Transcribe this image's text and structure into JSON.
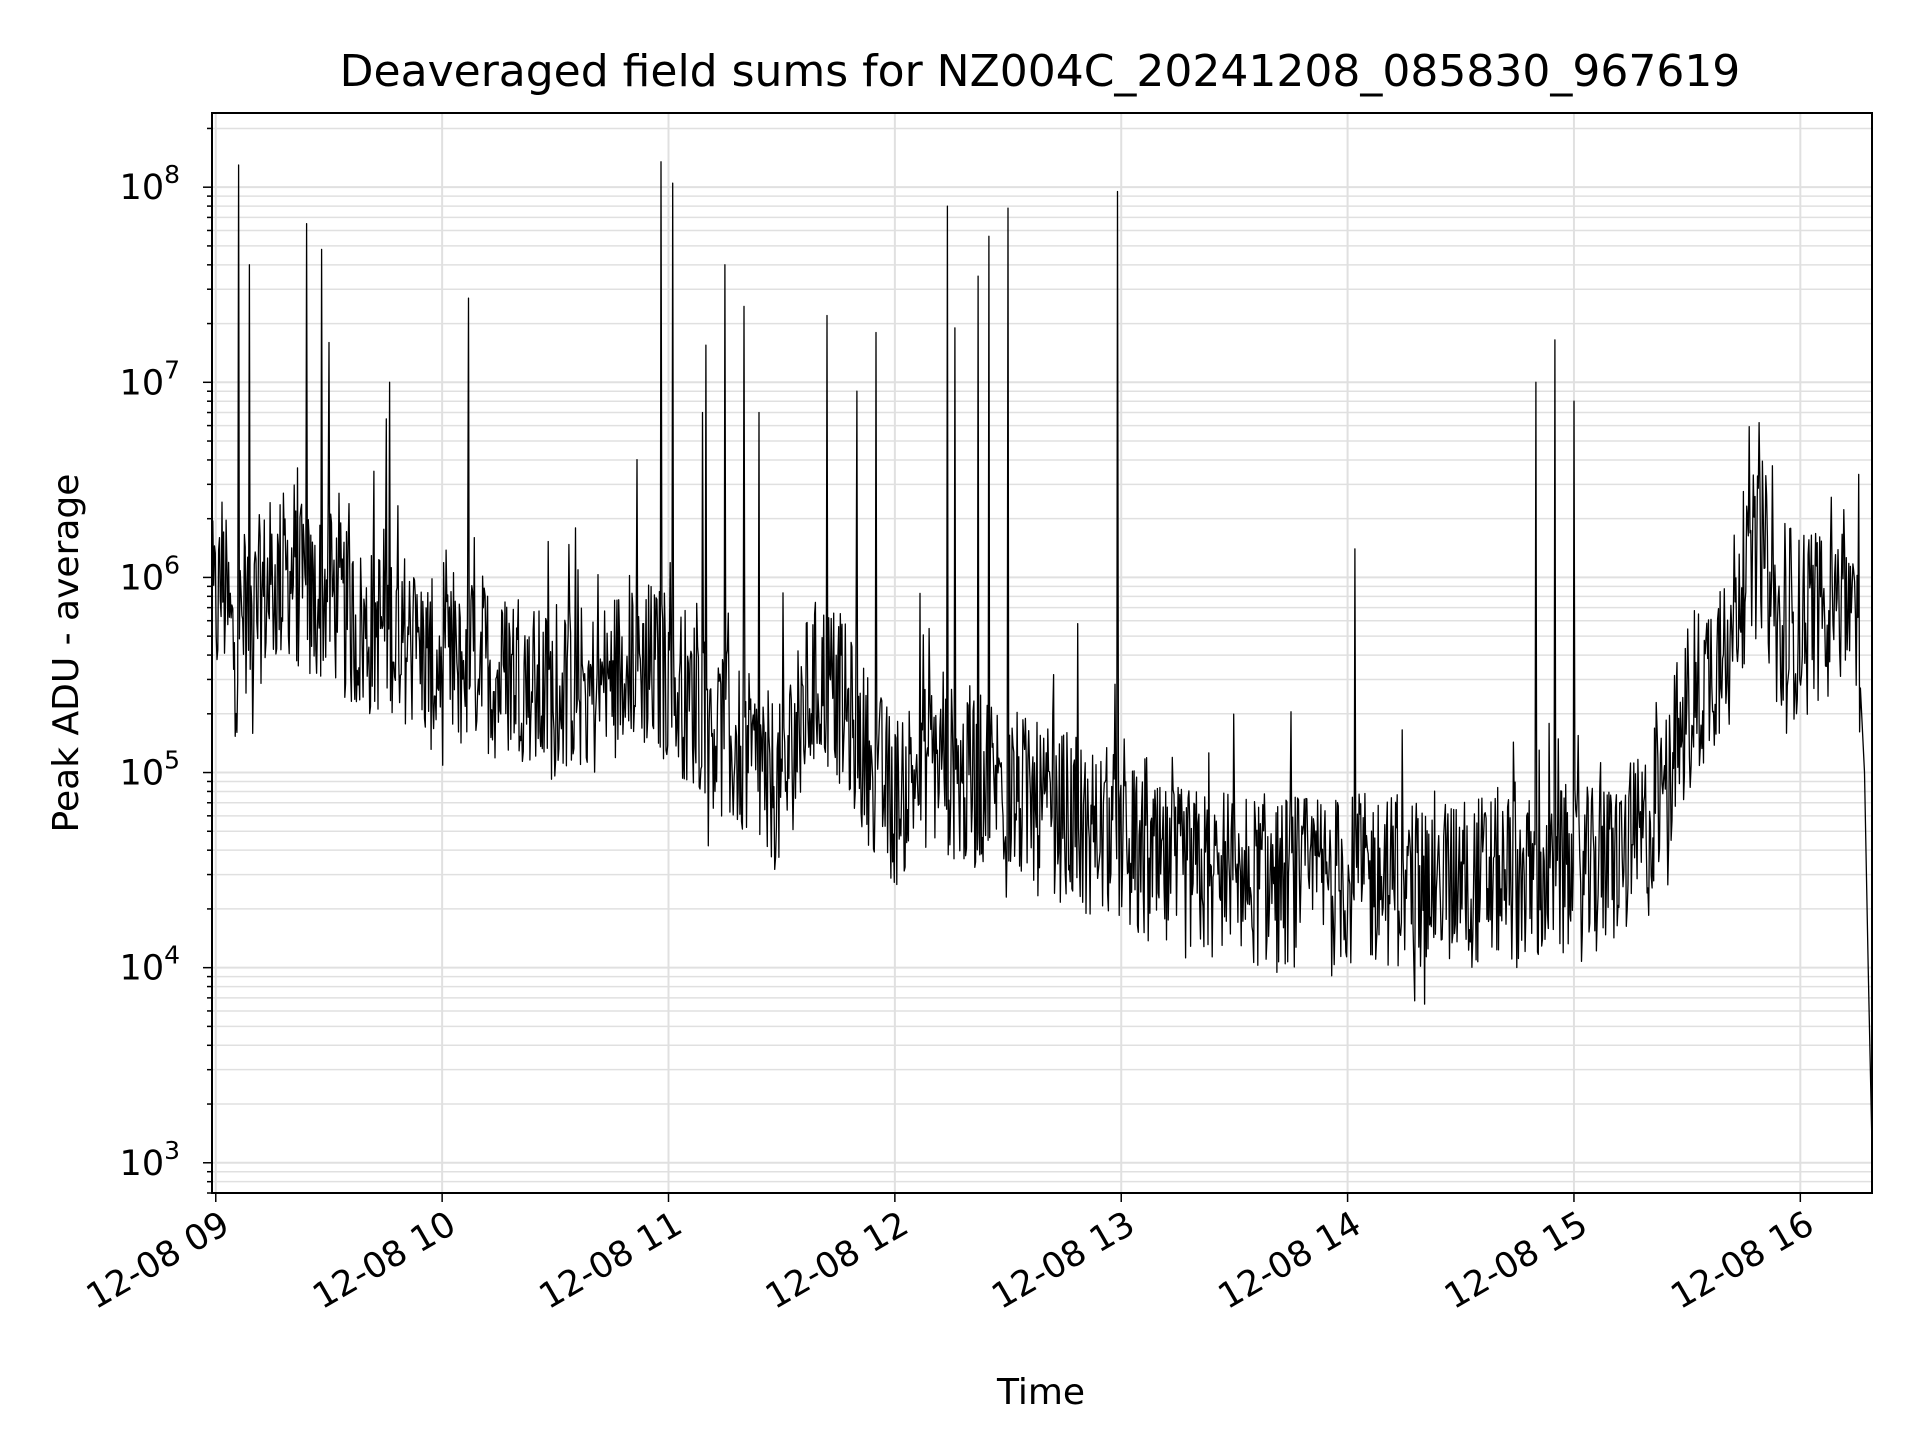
{
  "chart_data": {
    "type": "line",
    "title": "Deaveraged field sums for NZ004C_20241208_085830_967619",
    "xlabel": "Time",
    "ylabel": "Peak ADU - average",
    "yscale": "log",
    "ylim": [
      700,
      240000000
    ],
    "xlim": [
      "12-08 08:59",
      "12-08 16:19"
    ],
    "grid": true,
    "line_color": "#000000",
    "grid_color": "#e0e0e0",
    "x_ticks": [
      "12-08 09",
      "12-08 10",
      "12-08 11",
      "12-08 12",
      "12-08 13",
      "12-08 14",
      "12-08 15",
      "12-08 16"
    ],
    "y_ticks": [
      {
        "value": 1000,
        "base": "10",
        "exp": "3"
      },
      {
        "value": 10000,
        "base": "10",
        "exp": "4"
      },
      {
        "value": 100000,
        "base": "10",
        "exp": "5"
      },
      {
        "value": 1000000,
        "base": "10",
        "exp": "6"
      },
      {
        "value": 10000000,
        "base": "10",
        "exp": "7"
      },
      {
        "value": 100000000,
        "base": "10",
        "exp": "8"
      }
    ],
    "series": [
      {
        "values": [
          [
            "12-08 08:59",
            600000
          ],
          [
            "12-08 09:02",
            900000
          ],
          [
            "12-08 09:05",
            400000
          ],
          [
            "12-08 09:08",
            700000
          ],
          [
            "12-08 09:10",
            600000
          ],
          [
            "12-08 09:12",
            800000
          ],
          [
            "12-08 09:15",
            900000
          ],
          [
            "12-08 09:20",
            1100000
          ],
          [
            "12-08 09:25",
            700000
          ],
          [
            "12-08 09:30",
            900000
          ],
          [
            "12-08 09:35",
            600000
          ],
          [
            "12-08 09:40",
            500000
          ],
          [
            "12-08 09:45",
            600000
          ],
          [
            "12-08 09:50",
            500000
          ],
          [
            "12-08 09:55",
            400000
          ],
          [
            "12-08 10:00",
            300000
          ],
          [
            "12-08 10:05",
            350000
          ],
          [
            "12-08 10:10",
            400000
          ],
          [
            "12-08 10:15",
            300000
          ],
          [
            "12-08 10:20",
            350000
          ],
          [
            "12-08 10:25",
            250000
          ],
          [
            "12-08 10:30",
            250000
          ],
          [
            "12-08 10:35",
            300000
          ],
          [
            "12-08 10:40",
            250000
          ],
          [
            "12-08 10:45",
            300000
          ],
          [
            "12-08 10:50",
            400000
          ],
          [
            "12-08 10:55",
            350000
          ],
          [
            "12-08 11:00",
            300000
          ],
          [
            "12-08 11:05",
            250000
          ],
          [
            "12-08 11:10",
            200000
          ],
          [
            "12-08 11:15",
            150000
          ],
          [
            "12-08 11:20",
            120000
          ],
          [
            "12-08 11:25",
            100000
          ],
          [
            "12-08 11:30",
            80000
          ],
          [
            "12-08 11:35",
            200000
          ],
          [
            "12-08 11:40",
            300000
          ],
          [
            "12-08 11:45",
            250000
          ],
          [
            "12-08 11:50",
            150000
          ],
          [
            "12-08 11:55",
            100000
          ],
          [
            "12-08 12:00",
            70000
          ],
          [
            "12-08 12:05",
            100000
          ],
          [
            "12-08 12:10",
            120000
          ],
          [
            "12-08 12:15",
            100000
          ],
          [
            "12-08 12:20",
            80000
          ],
          [
            "12-08 12:25",
            100000
          ],
          [
            "12-08 12:30",
            80000
          ],
          [
            "12-08 12:35",
            70000
          ],
          [
            "12-08 12:40",
            60000
          ],
          [
            "12-08 12:45",
            60000
          ],
          [
            "12-08 12:50",
            50000
          ],
          [
            "12-08 12:55",
            50000
          ],
          [
            "12-08 13:00",
            45000
          ],
          [
            "12-08 13:05",
            35000
          ],
          [
            "12-08 13:10",
            30000
          ],
          [
            "12-08 13:15",
            30000
          ],
          [
            "12-08 13:20",
            30000
          ],
          [
            "12-08 13:25",
            30000
          ],
          [
            "12-08 13:30",
            28000
          ],
          [
            "12-08 13:35",
            28000
          ],
          [
            "12-08 13:40",
            28000
          ],
          [
            "12-08 13:45",
            28000
          ],
          [
            "12-08 13:50",
            28000
          ],
          [
            "12-08 13:55",
            28000
          ],
          [
            "12-08 14:00",
            28000
          ],
          [
            "12-08 14:05",
            28000
          ],
          [
            "12-08 14:10",
            28000
          ],
          [
            "12-08 14:15",
            28000
          ],
          [
            "12-08 14:20",
            28000
          ],
          [
            "12-08 14:25",
            30000
          ],
          [
            "12-08 14:30",
            28000
          ],
          [
            "12-08 14:35",
            28000
          ],
          [
            "12-08 14:40",
            30000
          ],
          [
            "12-08 14:45",
            28000
          ],
          [
            "12-08 14:50",
            30000
          ],
          [
            "12-08 14:55",
            30000
          ],
          [
            "12-08 15:00",
            30000
          ],
          [
            "12-08 15:05",
            30000
          ],
          [
            "12-08 15:10",
            35000
          ],
          [
            "12-08 15:15",
            40000
          ],
          [
            "12-08 15:20",
            50000
          ],
          [
            "12-08 15:25",
            100000
          ],
          [
            "12-08 15:30",
            200000
          ],
          [
            "12-08 15:35",
            300000
          ],
          [
            "12-08 15:40",
            500000
          ],
          [
            "12-08 15:45",
            1000000
          ],
          [
            "12-08 15:50",
            1500000
          ],
          [
            "12-08 15:55",
            400000
          ],
          [
            "12-08 16:00",
            600000
          ],
          [
            "12-08 16:05",
            800000
          ],
          [
            "12-08 16:08",
            1000000
          ],
          [
            "12-08 16:11",
            900000
          ],
          [
            "12-08 16:14",
            700000
          ],
          [
            "12-08 16:16",
            300000
          ],
          [
            "12-08 16:17",
            100000
          ],
          [
            "12-08 16:18",
            10000
          ],
          [
            "12-08 16:19",
            1200
          ]
        ],
        "spikes": [
          [
            "12-08 09:06",
            130000000
          ],
          [
            "12-08 09:09",
            40000000
          ],
          [
            "12-08 09:24",
            65000000
          ],
          [
            "12-08 09:28",
            48000000
          ],
          [
            "12-08 09:30",
            16000000
          ],
          [
            "12-08 09:42",
            3500000
          ],
          [
            "12-08 09:46",
            10000000
          ],
          [
            "12-08 10:07",
            27000000
          ],
          [
            "12-08 10:58",
            135000000
          ],
          [
            "12-08 11:01",
            105000000
          ],
          [
            "12-08 11:09",
            7000000
          ],
          [
            "12-08 11:10",
            15500000
          ],
          [
            "12-08 11:15",
            40000000
          ],
          [
            "12-08 11:20",
            24500000
          ],
          [
            "12-08 11:24",
            7000000
          ],
          [
            "12-08 11:42",
            22000000
          ],
          [
            "12-08 11:50",
            9000000
          ],
          [
            "12-08 11:55",
            18000000
          ],
          [
            "12-08 12:14",
            80000000
          ],
          [
            "12-08 12:16",
            19000000
          ],
          [
            "12-08 12:22",
            35000000
          ],
          [
            "12-08 12:25",
            56000000
          ],
          [
            "12-08 12:30",
            78000000
          ],
          [
            "12-08 12:59",
            95000000
          ],
          [
            "12-08 14:02",
            1400000
          ],
          [
            "12-08 14:50",
            10000000
          ],
          [
            "12-08 14:55",
            16500000
          ],
          [
            "12-08 15:00",
            8000000
          ],
          [
            "12-08 15:48",
            2600000
          ]
        ]
      }
    ]
  }
}
